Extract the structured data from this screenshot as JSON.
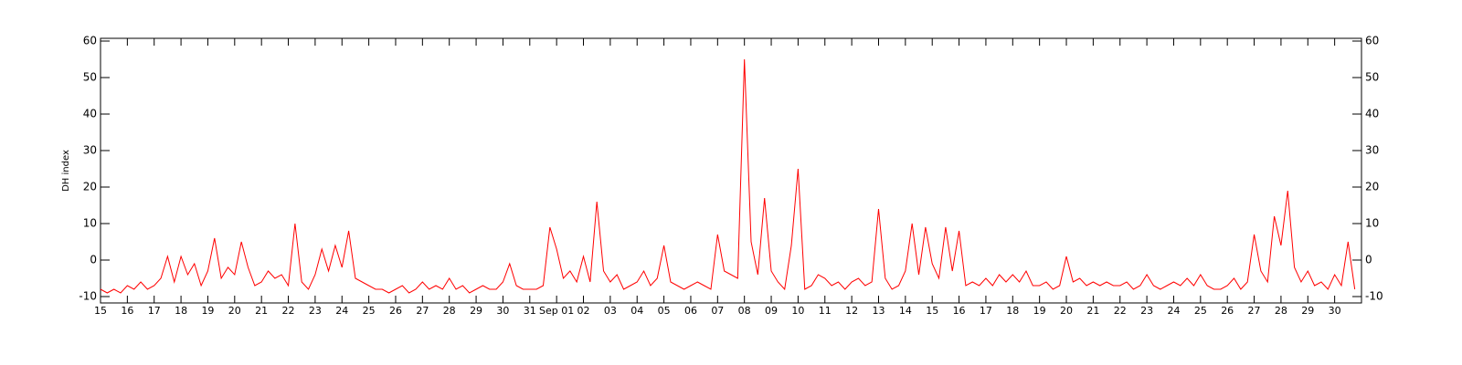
{
  "chart_data": {
    "type": "line",
    "ylabel": "DH index",
    "color": "#ff0000",
    "xlim": [
      0,
      47
    ],
    "ylim": [
      -11.75,
      60.75
    ],
    "yticks": [
      -10,
      0,
      10,
      20,
      30,
      40,
      50,
      60
    ],
    "xticks": [
      {
        "value": 0,
        "label": "15"
      },
      {
        "value": 1,
        "label": "16"
      },
      {
        "value": 2,
        "label": "17"
      },
      {
        "value": 3,
        "label": "18"
      },
      {
        "value": 4,
        "label": "19"
      },
      {
        "value": 5,
        "label": "20"
      },
      {
        "value": 6,
        "label": "21"
      },
      {
        "value": 7,
        "label": "22"
      },
      {
        "value": 8,
        "label": "23"
      },
      {
        "value": 9,
        "label": "24"
      },
      {
        "value": 10,
        "label": "25"
      },
      {
        "value": 11,
        "label": "26"
      },
      {
        "value": 12,
        "label": "27"
      },
      {
        "value": 13,
        "label": "28"
      },
      {
        "value": 14,
        "label": "29"
      },
      {
        "value": 15,
        "label": "30"
      },
      {
        "value": 16,
        "label": "31"
      },
      {
        "value": 17,
        "label": "Sep 01"
      },
      {
        "value": 18,
        "label": "02"
      },
      {
        "value": 19,
        "label": "03"
      },
      {
        "value": 20,
        "label": "04"
      },
      {
        "value": 21,
        "label": "05"
      },
      {
        "value": 22,
        "label": "06"
      },
      {
        "value": 23,
        "label": "07"
      },
      {
        "value": 24,
        "label": "08"
      },
      {
        "value": 25,
        "label": "09"
      },
      {
        "value": 26,
        "label": "10"
      },
      {
        "value": 27,
        "label": "11"
      },
      {
        "value": 28,
        "label": "12"
      },
      {
        "value": 29,
        "label": "13"
      },
      {
        "value": 30,
        "label": "14"
      },
      {
        "value": 31,
        "label": "15"
      },
      {
        "value": 32,
        "label": "16"
      },
      {
        "value": 33,
        "label": "17"
      },
      {
        "value": 34,
        "label": "18"
      },
      {
        "value": 35,
        "label": "19"
      },
      {
        "value": 36,
        "label": "20"
      },
      {
        "value": 37,
        "label": "21"
      },
      {
        "value": 38,
        "label": "22"
      },
      {
        "value": 39,
        "label": "23"
      },
      {
        "value": 40,
        "label": "24"
      },
      {
        "value": 41,
        "label": "25"
      },
      {
        "value": 42,
        "label": "26"
      },
      {
        "value": 43,
        "label": "27"
      },
      {
        "value": 44,
        "label": "28"
      },
      {
        "value": 45,
        "label": "29"
      },
      {
        "value": 46,
        "label": "30"
      }
    ],
    "x": [
      0,
      0.25,
      0.5,
      0.75,
      1,
      1.25,
      1.5,
      1.75,
      2,
      2.25,
      2.5,
      2.75,
      3,
      3.25,
      3.5,
      3.75,
      4,
      4.25,
      4.5,
      4.75,
      5,
      5.25,
      5.5,
      5.75,
      6,
      6.25,
      6.5,
      6.75,
      7,
      7.25,
      7.5,
      7.75,
      8,
      8.25,
      8.5,
      8.75,
      9,
      9.25,
      9.5,
      9.75,
      10,
      10.25,
      10.5,
      10.75,
      11,
      11.25,
      11.5,
      11.75,
      12,
      12.25,
      12.5,
      12.75,
      13,
      13.25,
      13.5,
      13.75,
      14,
      14.25,
      14.5,
      14.75,
      15,
      15.25,
      15.5,
      15.75,
      16,
      16.25,
      16.5,
      16.75,
      17,
      17.25,
      17.5,
      17.75,
      18,
      18.25,
      18.5,
      18.75,
      19,
      19.25,
      19.5,
      19.75,
      20,
      20.25,
      20.5,
      20.75,
      21,
      21.25,
      21.5,
      21.75,
      22,
      22.25,
      22.5,
      22.75,
      23,
      23.25,
      23.5,
      23.75,
      24,
      24.25,
      24.5,
      24.75,
      25,
      25.25,
      25.5,
      25.75,
      26,
      26.25,
      26.5,
      26.75,
      27,
      27.25,
      27.5,
      27.75,
      28,
      28.25,
      28.5,
      28.75,
      29,
      29.25,
      29.5,
      29.75,
      30,
      30.25,
      30.5,
      30.75,
      31,
      31.25,
      31.5,
      31.75,
      32,
      32.25,
      32.5,
      32.75,
      33,
      33.25,
      33.5,
      33.75,
      34,
      34.25,
      34.5,
      34.75,
      35,
      35.25,
      35.5,
      35.75,
      36,
      36.25,
      36.5,
      36.75,
      37,
      37.25,
      37.5,
      37.75,
      38,
      38.25,
      38.5,
      38.75,
      39,
      39.25,
      39.5,
      39.75,
      40,
      40.25,
      40.5,
      40.75,
      41,
      41.25,
      41.5,
      41.75,
      42,
      42.25,
      42.5,
      42.75,
      43,
      43.25,
      43.5,
      43.75,
      44,
      44.25,
      44.5,
      44.75,
      45,
      45.25,
      45.5,
      45.75,
      46,
      46.25,
      46.5,
      46.75
    ],
    "values": [
      -8,
      -9,
      -8,
      -9,
      -7,
      -8,
      -6,
      -8,
      -7,
      -5,
      1,
      -6,
      1,
      -4,
      -1,
      -7,
      -3,
      6,
      -5,
      -2,
      -4,
      5,
      -2,
      -7,
      -6,
      -3,
      -5,
      -4,
      -7,
      10,
      -6,
      -8,
      -4,
      3,
      -3,
      4,
      -2,
      8,
      -5,
      -6,
      -7,
      -8,
      -8,
      -9,
      -8,
      -7,
      -9,
      -8,
      -6,
      -8,
      -7,
      -8,
      -5,
      -8,
      -7,
      -9,
      -8,
      -7,
      -8,
      -8,
      -6,
      -1,
      -7,
      -8,
      -8,
      -8,
      -7,
      9,
      3,
      -5,
      -3,
      -6,
      1,
      -6,
      16,
      -3,
      -6,
      -4,
      -8,
      -7,
      -6,
      -3,
      -7,
      -5,
      4,
      -6,
      -7,
      -8,
      -7,
      -6,
      -7,
      -8,
      7,
      -3,
      -4,
      -5,
      55,
      5,
      -4,
      17,
      -3,
      -6,
      -8,
      4,
      25,
      -8,
      -7,
      -4,
      -5,
      -7,
      -6,
      -8,
      -6,
      -5,
      -7,
      -6,
      14,
      -5,
      -8,
      -7,
      -3,
      10,
      -4,
      9,
      -1,
      -5,
      9,
      -3,
      8,
      -7,
      -6,
      -7,
      -5,
      -7,
      -4,
      -6,
      -4,
      -6,
      -3,
      -7,
      -7,
      -6,
      -8,
      -7,
      1,
      -6,
      -5,
      -7,
      -6,
      -7,
      -6,
      -7,
      -7,
      -6,
      -8,
      -7,
      -4,
      -7,
      -8,
      -7,
      -6,
      -7,
      -5,
      -7,
      -4,
      -7,
      -8,
      -8,
      -7,
      -5,
      -8,
      -6,
      7,
      -3,
      -6,
      12,
      4,
      19,
      -2,
      -6,
      -3,
      -7,
      -6,
      -8,
      -4,
      -7,
      5,
      -8
    ]
  }
}
